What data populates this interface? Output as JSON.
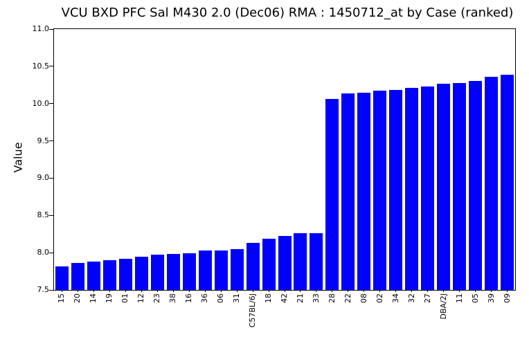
{
  "chart_data": {
    "type": "bar",
    "title": "VCU BXD PFC Sal M430 2.0 (Dec06) RMA : 1450712_at by Case (ranked)",
    "xlabel": "",
    "ylabel": "Value",
    "categories": [
      "15",
      "20",
      "14",
      "19",
      "01",
      "12",
      "23",
      "38",
      "16",
      "36",
      "06",
      "31",
      "C57BL/6J",
      "18",
      "42",
      "21",
      "33",
      "28",
      "22",
      "08",
      "02",
      "34",
      "32",
      "27",
      "DBA/2J",
      "11",
      "05",
      "39",
      "09"
    ],
    "values": [
      7.82,
      7.86,
      7.88,
      7.9,
      7.92,
      7.95,
      7.97,
      7.98,
      7.99,
      8.03,
      8.03,
      8.05,
      8.13,
      8.19,
      8.22,
      8.26,
      8.26,
      10.06,
      10.14,
      10.15,
      10.17,
      10.18,
      10.21,
      10.23,
      10.27,
      10.28,
      10.3,
      10.36,
      10.39
    ],
    "ylim": [
      7.5,
      11.0
    ],
    "yticks": [
      7.5,
      8.0,
      8.5,
      9.0,
      9.5,
      10.0,
      10.5,
      11.0
    ],
    "ytick_labels": [
      "7.5",
      "8.0",
      "8.5",
      "9.0",
      "9.5",
      "10.0",
      "10.5",
      "11.0"
    ],
    "bar_color": "#0000ff",
    "axis_color": "#000000",
    "background_color": "#ffffff",
    "grid": false,
    "legend": null
  }
}
